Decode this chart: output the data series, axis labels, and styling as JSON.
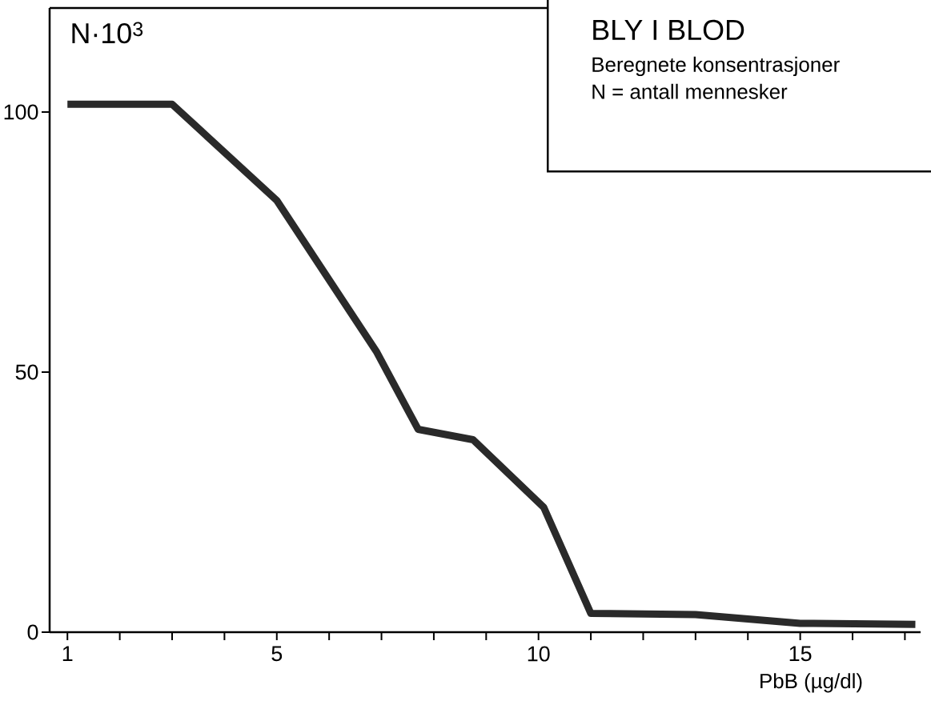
{
  "chart_data": {
    "type": "line",
    "title": "BLY I BLOD",
    "subtitle": "Beregnete konsentrasjoner",
    "ylabel": "N·10$^{3}$",
    "xlabel": "PbB (µg/dl)",
    "annotations": [
      "N = antall mennesker"
    ],
    "x": [
      1,
      3,
      5,
      6.9,
      7.7,
      8.75,
      10.1,
      11,
      13,
      15,
      17.2
    ],
    "series": [
      {
        "color": "#2a2a2a",
        "values": [
          101.5,
          101.5,
          83,
          54,
          39,
          37,
          24,
          3.6,
          3.4,
          1.7,
          1.5
        ]
      }
    ],
    "xlim": [
      0.66,
      17.3
    ],
    "ylim": [
      0,
      120
    ],
    "xticks": [
      1,
      {
        "value": 2,
        "label": null
      },
      {
        "value": 3,
        "label": null
      },
      {
        "value": 4,
        "label": null
      },
      5,
      {
        "value": 6,
        "label": null
      },
      {
        "value": 7,
        "label": null
      },
      {
        "value": 8,
        "label": null
      },
      {
        "value": 9,
        "label": null
      },
      10,
      {
        "value": 11,
        "label": null
      },
      {
        "value": 12,
        "label": null
      },
      {
        "value": 13,
        "label": null
      },
      {
        "value": 14,
        "label": null
      },
      15,
      {
        "value": 16,
        "label": null
      },
      {
        "value": 17,
        "label": null
      }
    ],
    "yticks": [
      0,
      50,
      100
    ],
    "grid": false,
    "marker": "none",
    "line_style": "solid"
  }
}
